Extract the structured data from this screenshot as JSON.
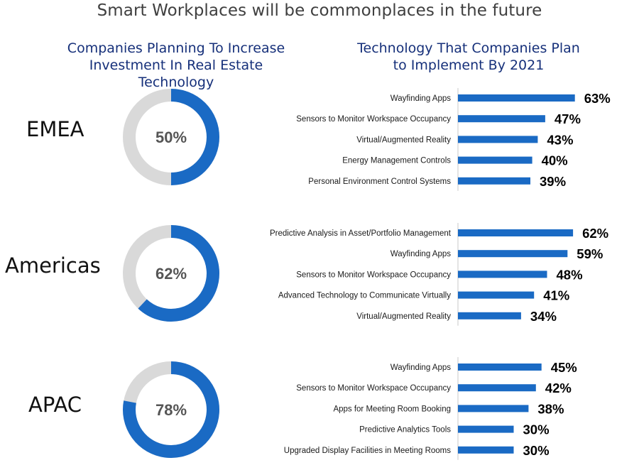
{
  "title": "Smart Workplaces will be commonplaces in the future",
  "left_subtitle": [
    "Companies Planning To Increase",
    "Investment In Real Estate Technology"
  ],
  "right_subtitle": [
    "Technology That Companies Plan",
    "to Implement By 2021"
  ],
  "colors": {
    "accent": "#1a6ac4",
    "track": "#d9d9d9",
    "title": "#3f3f3f",
    "subtitle": "#16307a"
  },
  "chart_data": [
    {
      "type": "pie",
      "title": "Companies Planning To Increase Investment In Real Estate Technology",
      "categories": [
        "EMEA",
        "Americas",
        "APAC"
      ],
      "values": [
        50,
        62,
        78
      ],
      "labels": [
        "50%",
        "62%",
        "78%"
      ]
    },
    {
      "type": "bar",
      "region": "EMEA",
      "categories": [
        "Wayfinding Apps",
        "Sensors to Monitor Workspace Occupancy",
        "Virtual/Augmented Reality",
        "Energy Management Controls",
        "Personal Environment Control Systems"
      ],
      "values": [
        63,
        47,
        43,
        40,
        39
      ],
      "labels": [
        "63%",
        "47%",
        "43%",
        "40%",
        "39%"
      ]
    },
    {
      "type": "bar",
      "region": "Americas",
      "categories": [
        "Predictive Analysis in Asset/Portfolio Management",
        "Wayfinding Apps",
        "Sensors to Monitor Workspace Occupancy",
        "Advanced Technology to Communicate Virtually",
        "Virtual/Augmented Reality"
      ],
      "values": [
        62,
        59,
        48,
        41,
        34
      ],
      "labels": [
        "62%",
        "59%",
        "48%",
        "41%",
        "34%"
      ]
    },
    {
      "type": "bar",
      "region": "APAC",
      "categories": [
        "Wayfinding Apps",
        "Sensors to Monitor Workspace Occupancy",
        "Apps for Meeting Room Booking",
        "Predictive Analytics Tools",
        "Upgraded Display Facilities in Meeting Rooms"
      ],
      "values": [
        45,
        42,
        38,
        30,
        30
      ],
      "labels": [
        "45%",
        "42%",
        "38%",
        "30%",
        "30%"
      ]
    }
  ]
}
